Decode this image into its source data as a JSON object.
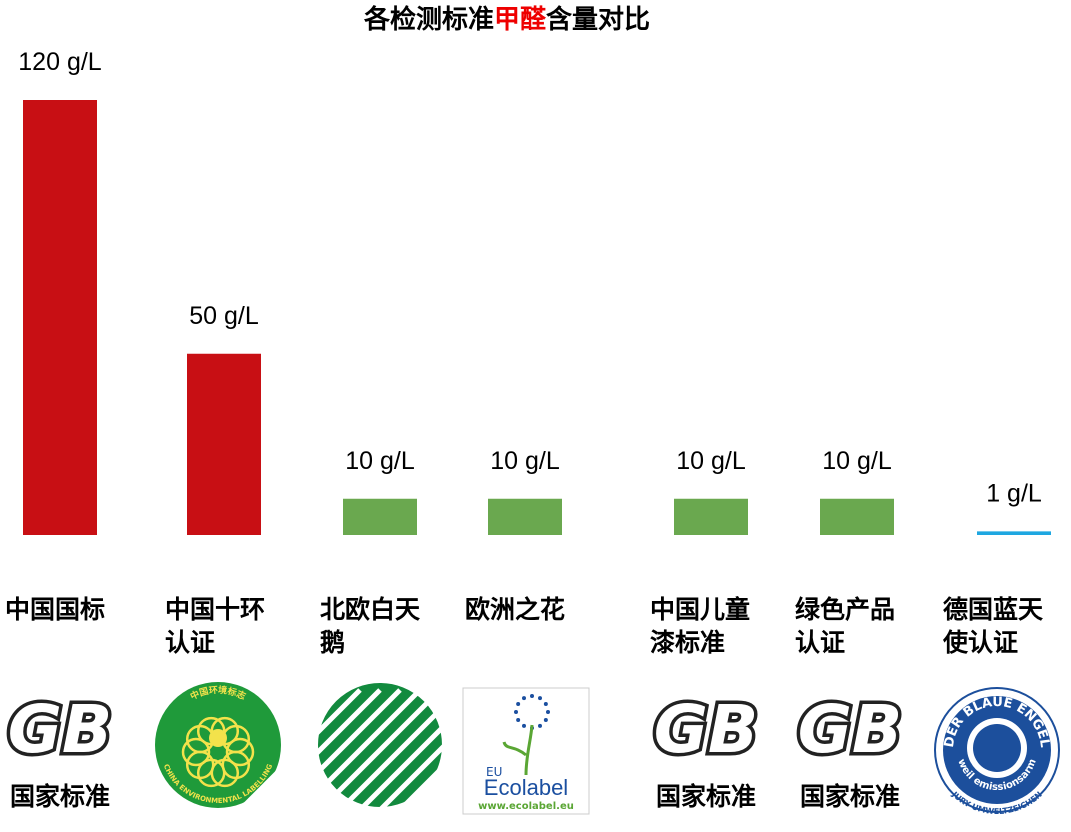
{
  "chart_data": {
    "type": "bar",
    "title": [
      "各检测标准",
      "甲醛",
      "含量对比"
    ],
    "categories": [
      "中国国标",
      "中国十环认证",
      "北欧白天鹅",
      "欧洲之花",
      "中国儿童漆标准",
      "绿色产品认证",
      "德国蓝天使认证"
    ],
    "values": [
      120,
      50,
      10,
      10,
      10,
      10,
      1
    ],
    "value_labels": [
      "120 g/L",
      "50 g/L",
      "10 g/L",
      "10 g/L",
      "10 g/L",
      "10 g/L",
      "1 g/L"
    ],
    "colors": [
      "#c80f14",
      "#c80f14",
      "#6aa84f",
      "#6aa84f",
      "#6aa84f",
      "#6aa84f",
      "#1ea7e1"
    ]
  },
  "logos": [
    {
      "kind": "gb",
      "text": "GB",
      "caption": "国家标准"
    },
    {
      "kind": "ten-ring",
      "texts": [
        "中国环境标志",
        "CHINA ENVIRONMENTAL LABELLING"
      ]
    },
    {
      "kind": "swan"
    },
    {
      "kind": "ecolabel",
      "texts": [
        "EU",
        "Ecolabel",
        "www.ecolabel.eu"
      ]
    },
    {
      "kind": "gb",
      "text": "GB",
      "caption": "国家标准"
    },
    {
      "kind": "gb",
      "text": "GB",
      "caption": "国家标准"
    },
    {
      "kind": "blue-angel",
      "texts": [
        "DER BLAUE ENGEL",
        "weil emissionsarm",
        "JURY UMWELTZEICHEN"
      ]
    }
  ]
}
